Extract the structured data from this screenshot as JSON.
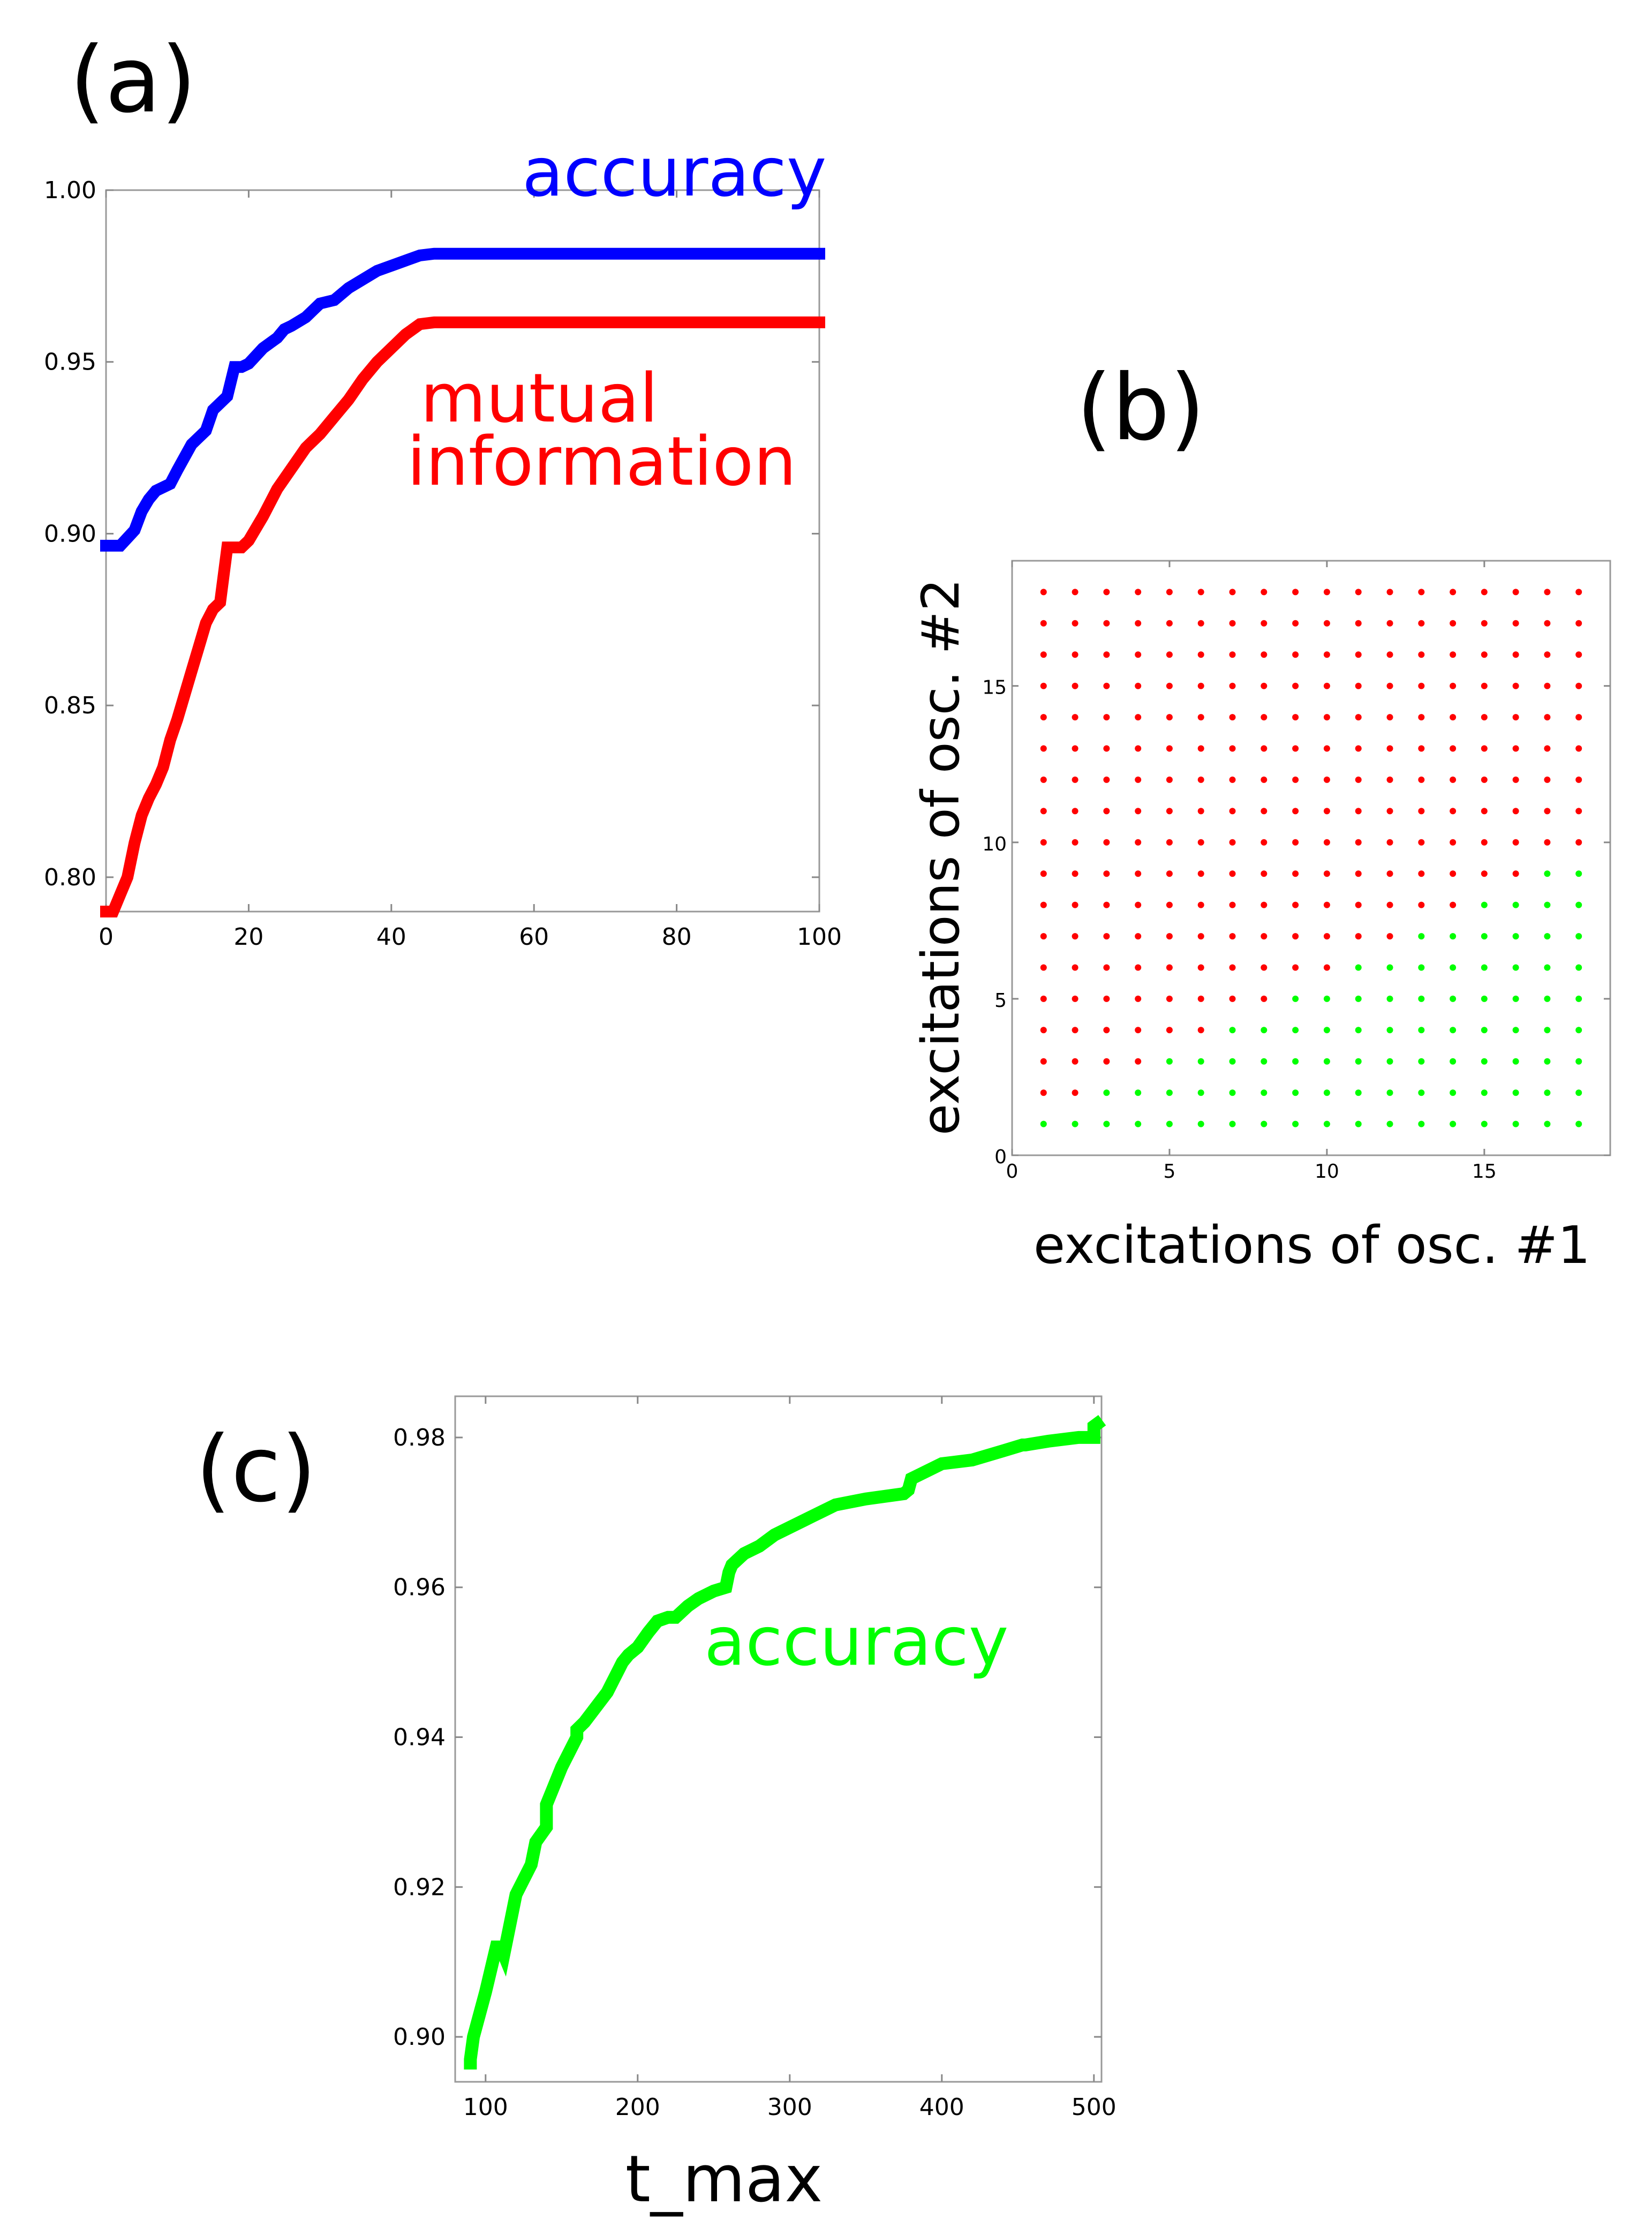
{
  "chart_data": [
    {
      "panel": "(a)",
      "type": "line",
      "title": "",
      "xlabel": "",
      "ylabel": "",
      "xlim": [
        0,
        100
      ],
      "ylim": [
        0.79,
        1.0
      ],
      "xticks": [
        "0",
        "20",
        "40",
        "60",
        "80",
        "100"
      ],
      "yticks": [
        "0.80",
        "0.85",
        "0.90",
        "0.95",
        "1.00"
      ],
      "colors": {
        "accuracy": "#0000ff",
        "mutual": "#ff0000"
      },
      "series": [
        {
          "name": "accuracy",
          "color": "#0000ff",
          "x": [
            0,
            2,
            4,
            5,
            6,
            7,
            9,
            10,
            12,
            14,
            15,
            16,
            17,
            18,
            19,
            20,
            22,
            23,
            24,
            25,
            26,
            28,
            29,
            30,
            32,
            34,
            36,
            38,
            40,
            42,
            44,
            46,
            50,
            60,
            80,
            100
          ],
          "values": [
            0.8965,
            0.8965,
            0.901,
            0.9065,
            0.91,
            0.9125,
            0.9145,
            0.9185,
            0.926,
            0.93,
            0.936,
            0.938,
            0.94,
            0.9485,
            0.9485,
            0.9495,
            0.954,
            0.9555,
            0.957,
            0.9595,
            0.9605,
            0.963,
            0.965,
            0.967,
            0.968,
            0.9715,
            0.974,
            0.9765,
            0.978,
            0.9795,
            0.981,
            0.9815,
            0.9815,
            0.9815,
            0.9815,
            0.9815
          ]
        },
        {
          "name": "mutual information",
          "color": "#ff0000",
          "x": [
            0,
            1,
            2,
            3,
            4,
            5,
            6,
            7,
            8,
            9,
            10,
            11,
            12,
            13,
            14,
            15,
            16,
            17,
            18,
            19,
            20,
            22,
            24,
            26,
            28,
            29,
            30,
            32,
            34,
            36,
            38,
            40,
            42,
            44,
            46,
            50,
            60,
            80,
            100
          ],
          "values": [
            0.79,
            0.79,
            0.795,
            0.8,
            0.81,
            0.818,
            0.823,
            0.827,
            0.832,
            0.84,
            0.846,
            0.853,
            0.86,
            0.867,
            0.874,
            0.878,
            0.88,
            0.896,
            0.896,
            0.896,
            0.898,
            0.905,
            0.913,
            0.919,
            0.925,
            0.927,
            0.929,
            0.934,
            0.939,
            0.945,
            0.95,
            0.954,
            0.958,
            0.961,
            0.9615,
            0.9615,
            0.9615,
            0.9615,
            0.9615
          ]
        }
      ],
      "annotations": [
        "accuracy",
        "mutual",
        "information"
      ]
    },
    {
      "panel": "(b)",
      "type": "scatter",
      "title": "",
      "xlabel": "excitations of osc. #1",
      "ylabel": "excitations of osc.  #2",
      "xlim": [
        0,
        19
      ],
      "ylim": [
        0,
        19
      ],
      "xticks": [
        "0",
        "5",
        "10",
        "15"
      ],
      "yticks": [
        "0",
        "5",
        "10",
        "15"
      ],
      "grid_range": [
        1,
        18
      ],
      "rule": "red when 2·(osc #2) − (osc #1) > 1, otherwise green",
      "colors": {
        "red": "#ff0000",
        "green": "#00ff00"
      }
    },
    {
      "panel": "(c)",
      "type": "line",
      "title": "",
      "xlabel": "t_max",
      "ylabel": "",
      "xlim": [
        80,
        505
      ],
      "ylim": [
        0.894,
        0.9855
      ],
      "xticks": [
        "100",
        "200",
        "300",
        "400",
        "500"
      ],
      "yticks": [
        "0.90",
        "0.92",
        "0.94",
        "0.96",
        "0.98"
      ],
      "series": [
        {
          "name": "accuracy",
          "color": "#00ff00",
          "x": [
            90,
            90,
            92,
            100,
            107,
            110,
            112,
            120,
            130,
            133,
            140,
            140,
            150,
            160,
            160,
            165,
            180,
            190,
            194,
            200,
            207,
            213,
            220,
            225,
            233,
            240,
            250,
            258,
            260,
            262,
            270,
            280,
            290,
            300,
            310,
            320,
            330,
            350,
            375,
            378,
            380,
            385,
            400,
            420,
            440,
            453,
            455,
            470,
            490,
            500,
            500,
            502
          ],
          "values": [
            0.8965,
            0.897,
            0.9,
            0.906,
            0.912,
            0.912,
            0.911,
            0.919,
            0.923,
            0.926,
            0.928,
            0.931,
            0.936,
            0.94,
            0.941,
            0.942,
            0.946,
            0.95,
            0.951,
            0.952,
            0.954,
            0.9555,
            0.956,
            0.956,
            0.9575,
            0.9585,
            0.9595,
            0.96,
            0.962,
            0.963,
            0.9645,
            0.9655,
            0.967,
            0.968,
            0.969,
            0.97,
            0.971,
            0.9718,
            0.9725,
            0.973,
            0.9745,
            0.975,
            0.9765,
            0.977,
            0.9782,
            0.979,
            0.979,
            0.9795,
            0.98,
            0.98,
            0.9815,
            0.9818
          ]
        }
      ],
      "annotations": [
        "accuracy"
      ]
    }
  ]
}
